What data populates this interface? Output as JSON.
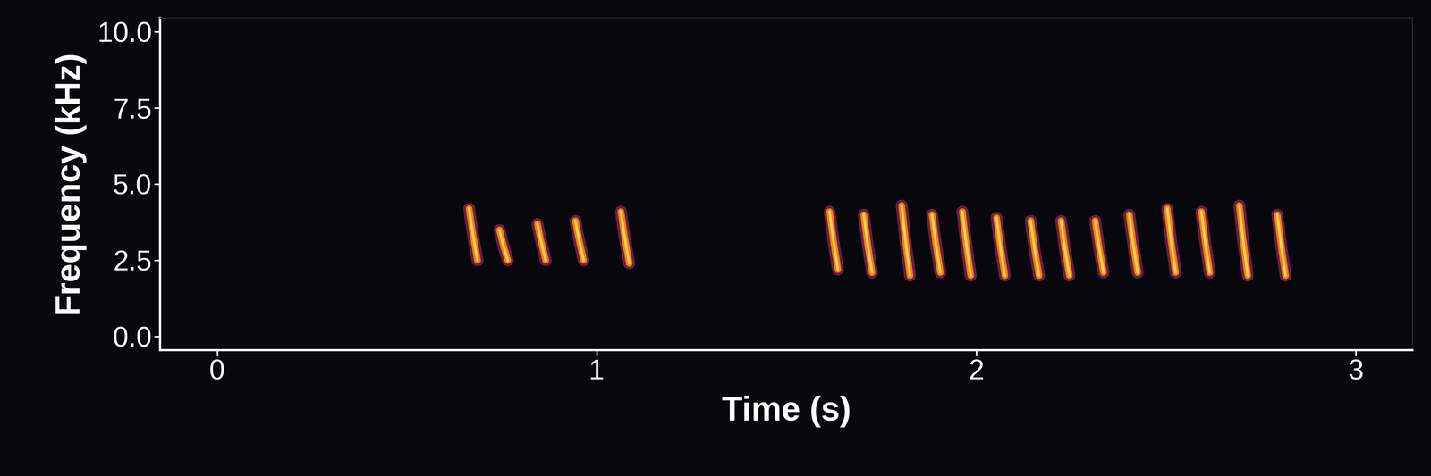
{
  "chart_data": {
    "type": "spectrogram",
    "x_label": "Time (s)",
    "y_label": "Frequency (kHz)",
    "xlim": [
      -0.15,
      3.15
    ],
    "xticks": [
      0,
      1,
      2,
      3
    ],
    "ylim": [
      -0.45,
      10.45
    ],
    "yticks": [
      {
        "value": 0,
        "label": "0.0"
      },
      {
        "value": 2.5,
        "label": "2.5"
      },
      {
        "value": 5,
        "label": "5.0"
      },
      {
        "value": 7.5,
        "label": "7.5"
      },
      {
        "value": 10,
        "label": "10.0"
      }
    ],
    "grid": false,
    "syllables": [
      {
        "time": 0.67,
        "f_low": 2.5,
        "f_high": 4.2
      },
      {
        "time": 0.75,
        "f_low": 2.5,
        "f_high": 3.5
      },
      {
        "time": 0.85,
        "f_low": 2.5,
        "f_high": 3.7
      },
      {
        "time": 0.95,
        "f_low": 2.5,
        "f_high": 3.8
      },
      {
        "time": 1.07,
        "f_low": 2.4,
        "f_high": 4.1
      },
      {
        "time": 1.62,
        "f_low": 2.2,
        "f_high": 4.1
      },
      {
        "time": 1.71,
        "f_low": 2.1,
        "f_high": 4.0
      },
      {
        "time": 1.81,
        "f_low": 2.0,
        "f_high": 4.3
      },
      {
        "time": 1.89,
        "f_low": 2.1,
        "f_high": 4.0
      },
      {
        "time": 1.97,
        "f_low": 2.0,
        "f_high": 4.1
      },
      {
        "time": 2.06,
        "f_low": 2.0,
        "f_high": 3.9
      },
      {
        "time": 2.15,
        "f_low": 2.0,
        "f_high": 3.8
      },
      {
        "time": 2.23,
        "f_low": 2.0,
        "f_high": 3.8
      },
      {
        "time": 2.32,
        "f_low": 2.1,
        "f_high": 3.8
      },
      {
        "time": 2.41,
        "f_low": 2.1,
        "f_high": 4.0
      },
      {
        "time": 2.51,
        "f_low": 2.1,
        "f_high": 4.2
      },
      {
        "time": 2.6,
        "f_low": 2.1,
        "f_high": 4.1
      },
      {
        "time": 2.7,
        "f_low": 2.0,
        "f_high": 4.3
      },
      {
        "time": 2.8,
        "f_low": 2.0,
        "f_high": 4.0
      }
    ]
  }
}
